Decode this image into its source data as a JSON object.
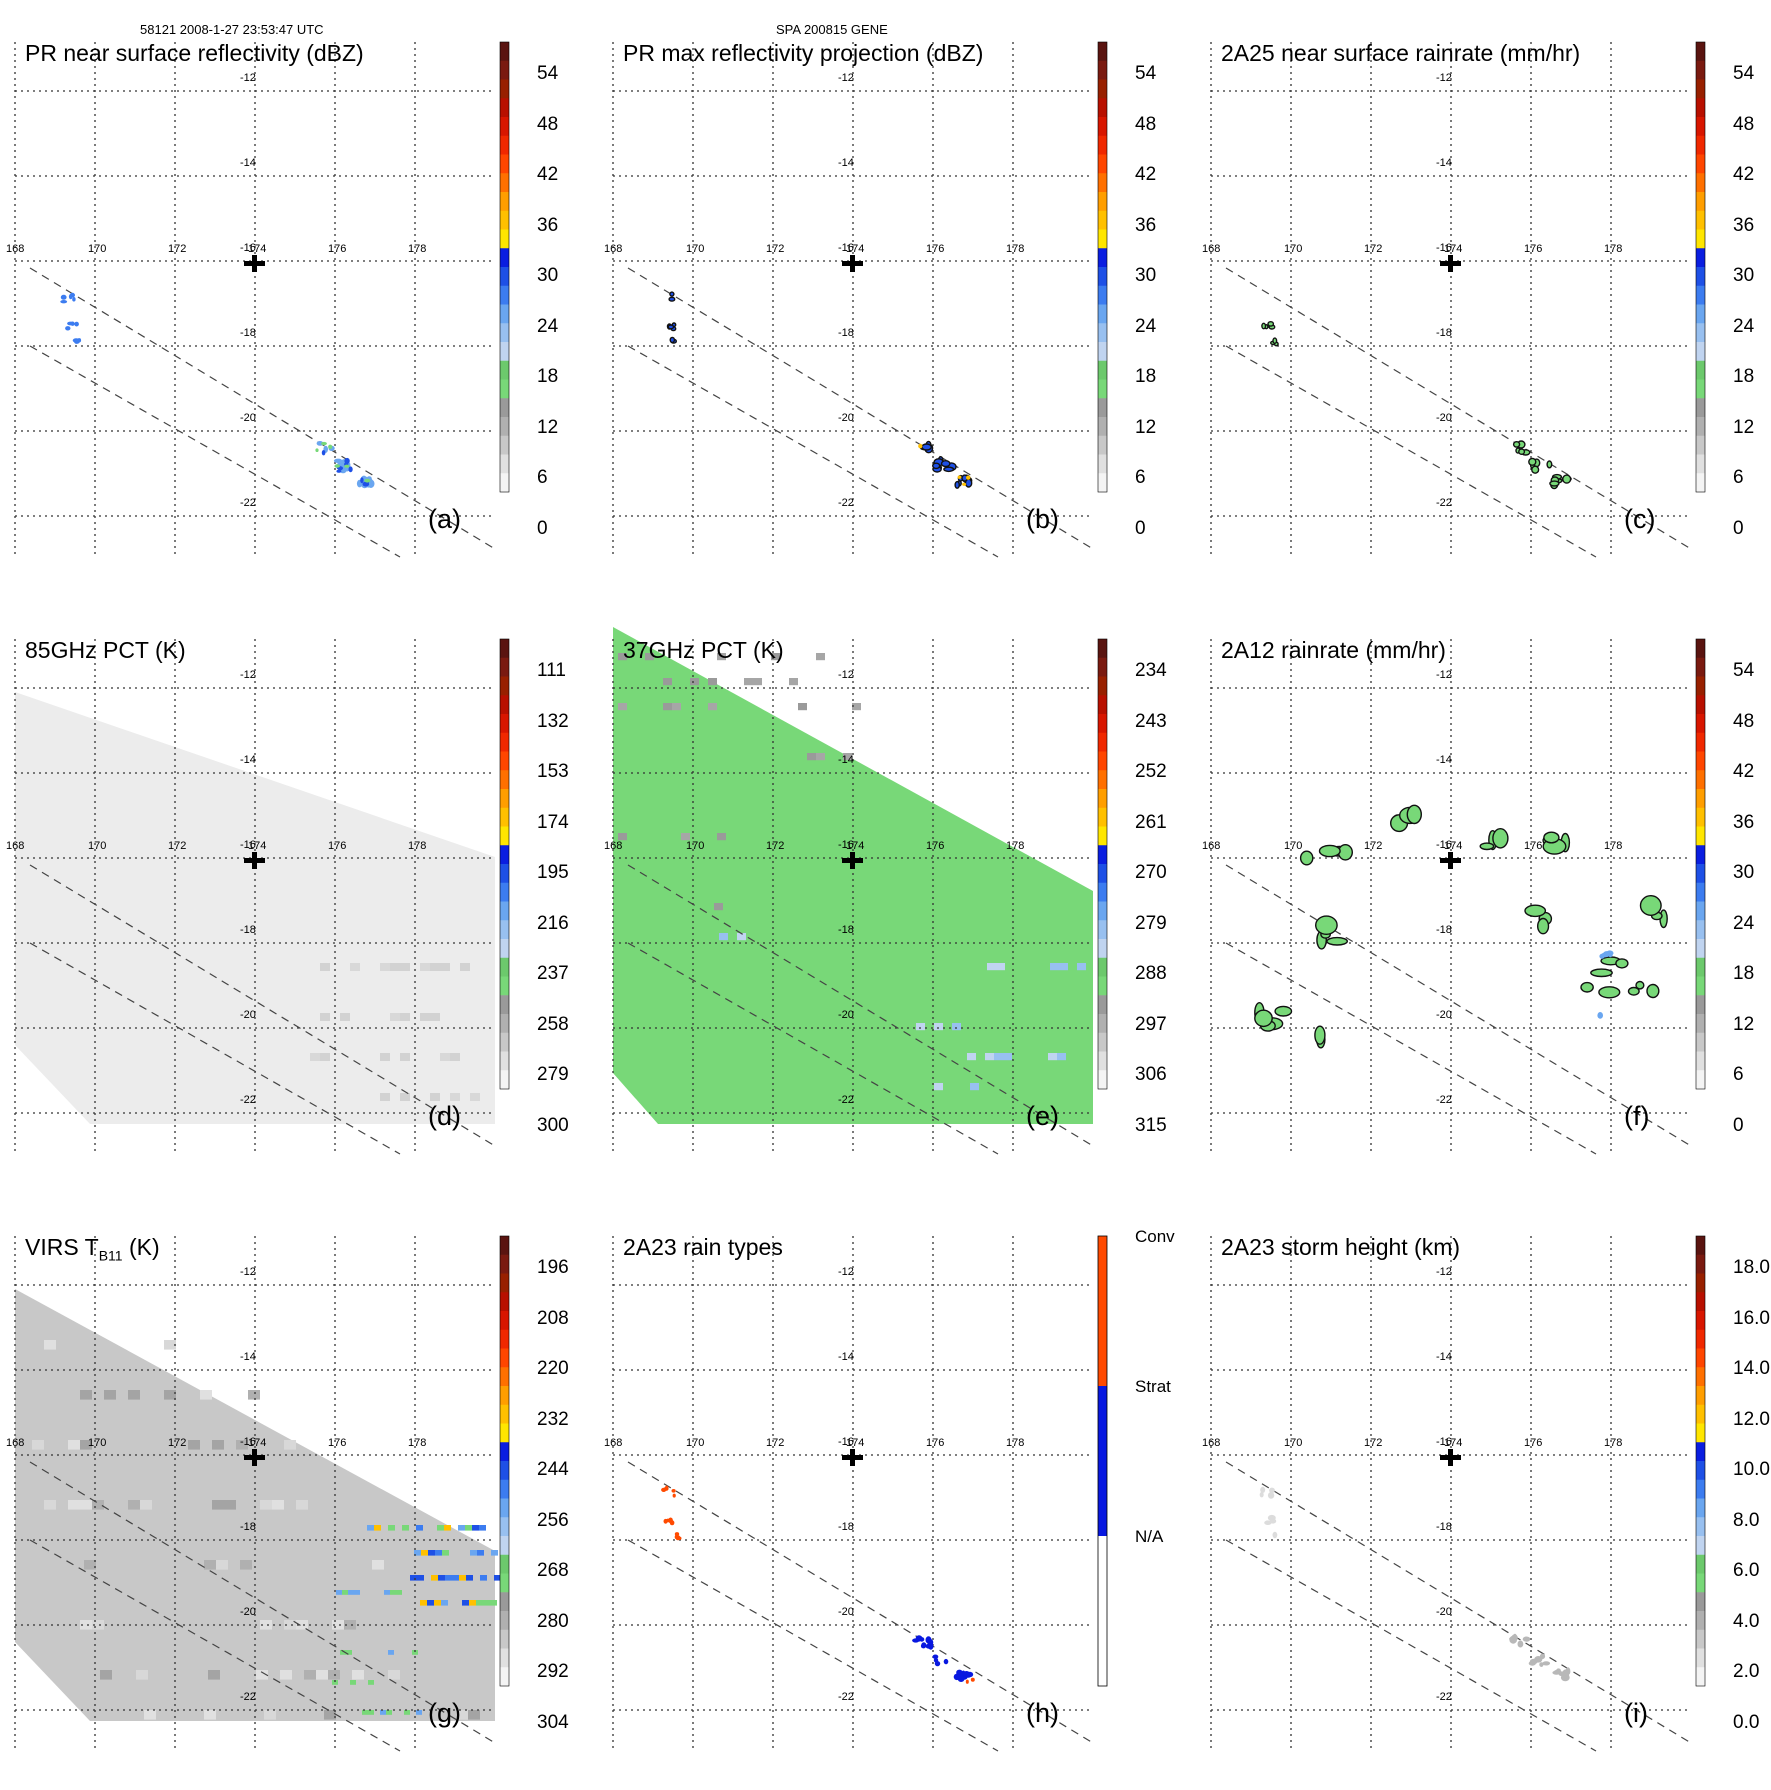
{
  "header": {
    "left": "58121 2008-1-27 23:53:47 UTC",
    "center": "SPA 200815 GENE"
  },
  "colors": {
    "scale": [
      "#f4f4f4",
      "#e0e0e0",
      "#c8c8c8",
      "#b0b0b0",
      "#9a9a9a",
      "#78d878",
      "#6cc96c",
      "#c0d4f0",
      "#98c0f0",
      "#6aa6f0",
      "#3c7cf0",
      "#1e50e6",
      "#0a1ee0",
      "#ffe600",
      "#ffc000",
      "#ff9e00",
      "#ff7000",
      "#ff4600",
      "#f02800",
      "#d81600",
      "#b81000",
      "#982000",
      "#7a1a10",
      "#5a1410"
    ],
    "raintype_conv": "#ff4a00",
    "raintype_strat": "#0818e0",
    "raintype_na": "#ffffff"
  },
  "map": {
    "lon_ticks": [
      "168",
      "170",
      "172",
      "174",
      "176",
      "178"
    ],
    "lat_ticks": [
      "-12",
      "-14",
      "-16",
      "-18",
      "-20",
      "-22"
    ]
  },
  "panels": [
    {
      "id": "a",
      "title": "PR near surface reflectivity (dBZ)",
      "label": "(a)",
      "ticks": [
        "54",
        "48",
        "42",
        "36",
        "30",
        "24",
        "18",
        "12",
        "6",
        "0"
      ]
    },
    {
      "id": "b",
      "title": "PR max reflectivity projection (dBZ)",
      "label": "(b)",
      "ticks": [
        "54",
        "48",
        "42",
        "36",
        "30",
        "24",
        "18",
        "12",
        "6",
        "0"
      ]
    },
    {
      "id": "c",
      "title": "2A25 near surface rainrate (mm/hr)",
      "label": "(c)",
      "ticks": [
        "54",
        "48",
        "42",
        "36",
        "30",
        "24",
        "18",
        "12",
        "6",
        "0"
      ]
    },
    {
      "id": "d",
      "title": "85GHz PCT (K)",
      "label": "(d)",
      "ticks": [
        "111",
        "132",
        "153",
        "174",
        "195",
        "216",
        "237",
        "258",
        "279",
        "300"
      ]
    },
    {
      "id": "e",
      "title": "37GHz PCT (K)",
      "label": "(e)",
      "ticks": [
        "234",
        "243",
        "252",
        "261",
        "270",
        "279",
        "288",
        "297",
        "306",
        "315"
      ]
    },
    {
      "id": "f",
      "title": "2A12 rainrate (mm/hr)",
      "label": "(f)",
      "ticks": [
        "54",
        "48",
        "42",
        "36",
        "30",
        "24",
        "18",
        "12",
        "6",
        "0"
      ]
    },
    {
      "id": "g",
      "title": "VIRS T",
      "title_sub": "B11",
      "title_suffix": " (K)",
      "label": "(g)",
      "ticks": [
        "196",
        "208",
        "220",
        "232",
        "244",
        "256",
        "268",
        "280",
        "292",
        "304"
      ]
    },
    {
      "id": "h",
      "title": "2A23 rain types",
      "label": "(h)",
      "ticks": [
        "Conv",
        "Strat",
        "N/A"
      ]
    },
    {
      "id": "i",
      "title": "2A23 storm height (km)",
      "label": "(i)",
      "ticks": [
        "18.0",
        "16.0",
        "14.0",
        "12.0",
        "10.0",
        "8.0",
        "6.0",
        "4.0",
        "2.0",
        "0.0"
      ]
    }
  ]
}
